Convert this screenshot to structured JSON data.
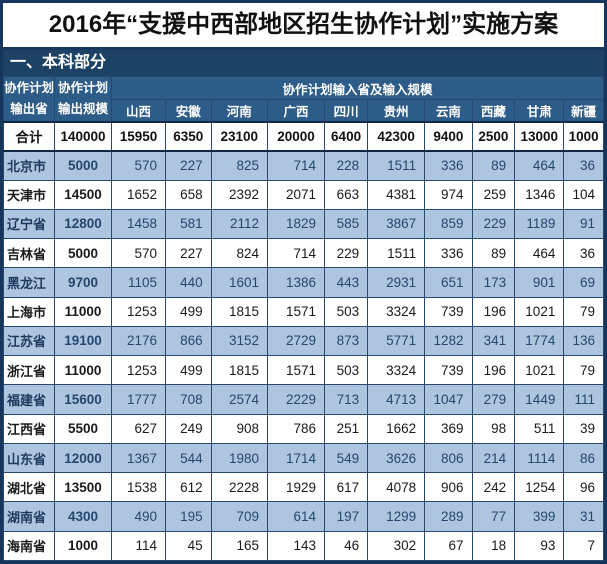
{
  "title": "2016年“支援中西部地区招生协作计划”实施方案",
  "section_label": "一、本科部分",
  "headers": {
    "output_province_line1": "协作计划",
    "output_province_line2": "输出省",
    "output_scale_line1": "协作计划",
    "output_scale_line2": "输出规模",
    "input_header": "协作计划输入省及输入规模",
    "input_provinces": [
      "山西",
      "安徽",
      "河南",
      "广西",
      "四川",
      "贵州",
      "云南",
      "西藏",
      "甘肃",
      "新疆"
    ]
  },
  "total_row": {
    "label": "合计",
    "output_scale": "140000",
    "values": [
      15950,
      6350,
      23100,
      20000,
      6400,
      42300,
      9400,
      2500,
      13000,
      1000
    ]
  },
  "rows": [
    {
      "label": "北京市",
      "output_scale": "5000",
      "values": [
        570,
        227,
        825,
        714,
        228,
        1511,
        336,
        89,
        464,
        36
      ]
    },
    {
      "label": "天津市",
      "output_scale": "14500",
      "values": [
        1652,
        658,
        2392,
        2071,
        663,
        4381,
        974,
        259,
        1346,
        104
      ]
    },
    {
      "label": "辽宁省",
      "output_scale": "12800",
      "values": [
        1458,
        581,
        2112,
        1829,
        585,
        3867,
        859,
        229,
        1189,
        91
      ]
    },
    {
      "label": "吉林省",
      "output_scale": "5000",
      "values": [
        570,
        227,
        824,
        714,
        229,
        1511,
        336,
        89,
        464,
        36
      ]
    },
    {
      "label": "黑龙江",
      "output_scale": "9700",
      "values": [
        1105,
        440,
        1601,
        1386,
        443,
        2931,
        651,
        173,
        901,
        69
      ]
    },
    {
      "label": "上海市",
      "output_scale": "11000",
      "values": [
        1253,
        499,
        1815,
        1571,
        503,
        3324,
        739,
        196,
        1021,
        79
      ]
    },
    {
      "label": "江苏省",
      "output_scale": "19100",
      "values": [
        2176,
        866,
        3152,
        2729,
        873,
        5771,
        1282,
        341,
        1774,
        136
      ]
    },
    {
      "label": "浙江省",
      "output_scale": "11000",
      "values": [
        1253,
        499,
        1815,
        1571,
        503,
        3324,
        739,
        196,
        1021,
        79
      ]
    },
    {
      "label": "福建省",
      "output_scale": "15600",
      "values": [
        1777,
        708,
        2574,
        2229,
        713,
        4713,
        1047,
        279,
        1449,
        111
      ]
    },
    {
      "label": "江西省",
      "output_scale": "5500",
      "values": [
        627,
        249,
        908,
        786,
        251,
        1662,
        369,
        98,
        511,
        39
      ]
    },
    {
      "label": "山东省",
      "output_scale": "12000",
      "values": [
        1367,
        544,
        1980,
        1714,
        549,
        3626,
        806,
        214,
        1114,
        86
      ]
    },
    {
      "label": "湖北省",
      "output_scale": "13500",
      "values": [
        1538,
        612,
        2228,
        1929,
        617,
        4078,
        906,
        242,
        1254,
        96
      ]
    },
    {
      "label": "湖南省",
      "output_scale": "4300",
      "values": [
        490,
        195,
        709,
        614,
        197,
        1299,
        289,
        77,
        399,
        31
      ]
    },
    {
      "label": "海南省",
      "output_scale": "1000",
      "values": [
        114,
        45,
        165,
        143,
        46,
        302,
        67,
        18,
        93,
        7
      ]
    }
  ],
  "colors": {
    "frame": "#17365d",
    "section_bg": "#1e4266",
    "header_bg": "#2e5c88",
    "band_bg": "#aec5df",
    "band_text": "#24476e",
    "grid": "#27496e",
    "title_text": "#111111"
  }
}
